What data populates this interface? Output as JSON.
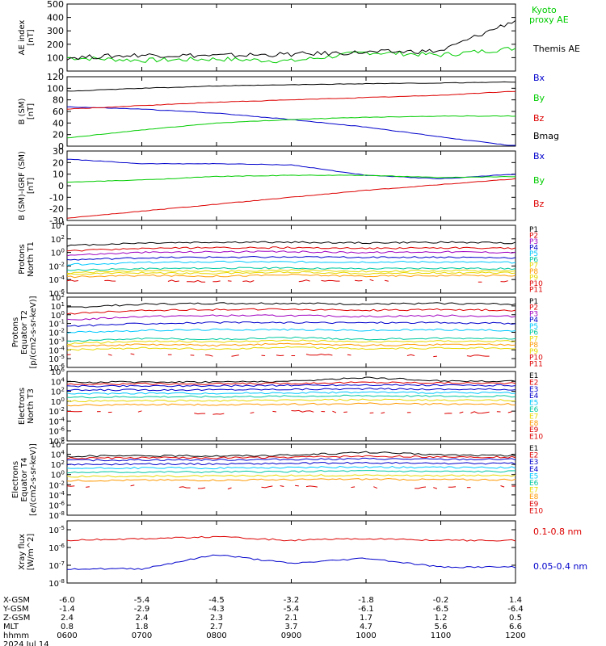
{
  "colors": {
    "black": "#000000",
    "green": "#00cc00",
    "red": "#dd0000",
    "blue": "#0000cc",
    "purple": "#a000c0",
    "cyan": "#00c8ff",
    "teal": "#00c8a0",
    "yellow": "#e8d800",
    "orange": "#ff9900"
  },
  "xaxis": {
    "rows": [
      {
        "label": "X-GSM",
        "values": [
          "-6.0",
          "-5.4",
          "-4.5",
          "-3.2",
          "-1.8",
          "-0.2",
          "1.4"
        ]
      },
      {
        "label": "Y-GSM",
        "values": [
          "-1.4",
          "-2.9",
          "-4.3",
          "-5.4",
          "-6.1",
          "-6.5",
          "-6.4"
        ]
      },
      {
        "label": "Z-GSM",
        "values": [
          "2.4",
          "2.4",
          "2.3",
          "2.1",
          "1.7",
          "1.2",
          "0.5"
        ]
      },
      {
        "label": "MLT",
        "values": [
          "0.8",
          "1.8",
          "2.7",
          "3.7",
          "4.7",
          "5.6",
          "6.6"
        ]
      },
      {
        "label": "hhmm",
        "values": [
          "0600",
          "0700",
          "0800",
          "0900",
          "1000",
          "1100",
          "1200"
        ]
      }
    ],
    "date": "2024 Jul 14"
  },
  "chart_data": [
    {
      "type": "line",
      "ylabel": "AE index [nT]",
      "ylim": [
        0,
        500
      ],
      "yticks": [
        "0",
        "100",
        "200",
        "300",
        "400",
        "500"
      ],
      "x": [
        "0600",
        "0700",
        "0800",
        "0900",
        "1000",
        "1100",
        "1200"
      ],
      "series": [
        {
          "name": "Kyoto proxy AE",
          "color": "green",
          "values": [
            100,
            80,
            90,
            75,
            140,
            120,
            170
          ]
        },
        {
          "name": "Themis AE",
          "color": "black",
          "values": [
            100,
            120,
            115,
            125,
            140,
            150,
            380
          ]
        }
      ]
    },
    {
      "type": "line",
      "ylabel": "B (SM) [nT]",
      "ylim": [
        0,
        120
      ],
      "yticks": [
        "0",
        "20",
        "40",
        "60",
        "80",
        "100",
        "120"
      ],
      "x": [
        "0600",
        "0700",
        "0800",
        "0900",
        "1000",
        "1100",
        "1200"
      ],
      "series": [
        {
          "name": "Bx",
          "color": "blue",
          "values": [
            68,
            64,
            57,
            46,
            33,
            16,
            0
          ]
        },
        {
          "name": "By",
          "color": "green",
          "values": [
            14,
            28,
            40,
            46,
            50,
            52,
            52
          ]
        },
        {
          "name": "Bz",
          "color": "red",
          "values": [
            64,
            70,
            76,
            80,
            84,
            88,
            95
          ]
        },
        {
          "name": "Bmag",
          "color": "black",
          "values": [
            95,
            100,
            104,
            106,
            108,
            109,
            111
          ]
        }
      ]
    },
    {
      "type": "line",
      "ylabel": "B (SM)-IGRF (SM) [nT]",
      "ylim": [
        -30,
        30
      ],
      "yticks": [
        "-30",
        "-20",
        "-10",
        "0",
        "10",
        "20",
        "30"
      ],
      "x": [
        "0600",
        "0700",
        "0800",
        "0900",
        "1000",
        "1100",
        "1200"
      ],
      "series": [
        {
          "name": "Bx",
          "color": "blue",
          "values": [
            23,
            19,
            19,
            18,
            9,
            6,
            10
          ]
        },
        {
          "name": "By",
          "color": "green",
          "values": [
            3,
            5,
            8,
            9,
            9,
            7,
            8
          ]
        },
        {
          "name": "Bz",
          "color": "red",
          "values": [
            -28,
            -22,
            -16,
            -10,
            -4,
            1,
            6
          ]
        }
      ]
    },
    {
      "type": "line",
      "ylabel": "Protons North T1",
      "scale": "log",
      "ylim_exp": [
        -6,
        4
      ],
      "ytick_exps": [
        -6,
        -4,
        -2,
        0,
        2,
        4
      ],
      "x": [
        "0600",
        "0700",
        "0800",
        "0900",
        "1000",
        "1100",
        "1200"
      ],
      "series": [
        {
          "name": "P1",
          "color": "black",
          "log10_values": [
            1.0,
            1.4,
            1.5,
            1.5,
            1.4,
            1.5,
            1.4
          ]
        },
        {
          "name": "P2",
          "color": "red",
          "log10_values": [
            0.2,
            0.6,
            0.7,
            0.7,
            0.6,
            0.7,
            0.6
          ]
        },
        {
          "name": "P3",
          "color": "purple",
          "log10_values": [
            -0.4,
            0.0,
            0.1,
            0.1,
            0.0,
            0.1,
            0.0
          ]
        },
        {
          "name": "P4",
          "color": "blue",
          "log10_values": [
            -1.1,
            -0.8,
            -0.7,
            -0.7,
            -0.7,
            -0.7,
            -0.8
          ]
        },
        {
          "name": "P5",
          "color": "cyan",
          "log10_values": [
            -1.8,
            -1.5,
            -1.4,
            -1.4,
            -1.4,
            -1.4,
            -1.5
          ]
        },
        {
          "name": "P6",
          "color": "teal",
          "log10_values": [
            -2.6,
            -2.4,
            -2.3,
            -2.3,
            -2.4,
            -2.3,
            -2.4
          ]
        },
        {
          "name": "P7",
          "color": "yellow",
          "log10_values": [
            -3.0,
            -2.7,
            -2.8,
            -2.6,
            -2.8,
            -2.7,
            -2.7
          ]
        },
        {
          "name": "P8",
          "color": "orange",
          "log10_values": [
            -3.6,
            -3.4,
            -3.5,
            -3.3,
            -3.5,
            -3.4,
            -3.4
          ]
        },
        {
          "name": "P9",
          "color": "yellow",
          "log10_values": [
            -3.2,
            -3.0,
            -3.1,
            -2.9,
            -3.1,
            -3.0,
            -3.0
          ]
        },
        {
          "name": "P10",
          "color": "red",
          "log10_values": [
            -4.2,
            -4.1,
            -4.3,
            -4.2,
            -4.1,
            -4.3,
            -4.2
          ]
        },
        {
          "name": "P11",
          "color": "red",
          "log10_values": [
            null,
            null,
            null,
            null,
            null,
            null,
            null
          ]
        }
      ]
    },
    {
      "type": "line",
      "ylabel": "Protons Equator T2 [p/(cm2-s-sr-keV)]",
      "scale": "log",
      "ylim_exp": [
        -6,
        2
      ],
      "ytick_exps": [
        -6,
        -5,
        -4,
        -3,
        -2,
        -1,
        0,
        1,
        2
      ],
      "x": [
        "0600",
        "0700",
        "0800",
        "0900",
        "1000",
        "1100",
        "1200"
      ],
      "series": [
        {
          "name": "P1",
          "color": "black",
          "log10_values": [
            0.8,
            1.2,
            1.3,
            1.3,
            1.2,
            1.3,
            1.2
          ]
        },
        {
          "name": "P2",
          "color": "red",
          "log10_values": [
            0.1,
            0.5,
            0.6,
            0.6,
            0.5,
            0.6,
            0.5
          ]
        },
        {
          "name": "P3",
          "color": "purple",
          "log10_values": [
            -0.6,
            -0.2,
            -0.1,
            -0.1,
            -0.2,
            -0.1,
            -0.2
          ]
        },
        {
          "name": "P4",
          "color": "blue",
          "log10_values": [
            -1.3,
            -1.0,
            -0.9,
            -0.9,
            -0.9,
            -0.9,
            -1.0
          ]
        },
        {
          "name": "P5",
          "color": "cyan",
          "log10_values": [
            -2.0,
            -1.8,
            -1.7,
            -1.7,
            -1.8,
            -1.7,
            -1.8
          ]
        },
        {
          "name": "P6",
          "color": "teal",
          "log10_values": [
            -3.0,
            -2.7,
            -2.8,
            -2.6,
            -2.8,
            -2.7,
            -2.7
          ]
        },
        {
          "name": "P7",
          "color": "yellow",
          "log10_values": [
            -3.3,
            -3.0,
            -3.1,
            -2.9,
            -3.1,
            -3.0,
            -3.0
          ]
        },
        {
          "name": "P8",
          "color": "orange",
          "log10_values": [
            -3.6,
            -3.4,
            -3.5,
            -3.3,
            -3.5,
            -3.4,
            -3.4
          ]
        },
        {
          "name": "P9",
          "color": "yellow",
          "log10_values": [
            -4.0,
            -3.8,
            -3.9,
            -3.7,
            -3.9,
            -3.8,
            -3.8
          ]
        },
        {
          "name": "P10",
          "color": "red",
          "log10_values": [
            -4.6,
            -4.5,
            -4.7,
            -4.6,
            -4.5,
            -4.7,
            -4.6
          ]
        },
        {
          "name": "P11",
          "color": "red",
          "log10_values": [
            null,
            null,
            null,
            null,
            null,
            null,
            null
          ]
        }
      ]
    },
    {
      "type": "line",
      "ylabel": "Electrons North T3",
      "scale": "log",
      "ylim_exp": [
        -8,
        6
      ],
      "ytick_exps": [
        -8,
        -6,
        -4,
        -2,
        0,
        2,
        4,
        6
      ],
      "x": [
        "0600",
        "0700",
        "0800",
        "0900",
        "1000",
        "1100",
        "1200"
      ],
      "series": [
        {
          "name": "E1",
          "color": "black",
          "log10_values": [
            3.8,
            3.9,
            3.9,
            4.0,
            4.8,
            4.1,
            4.0
          ]
        },
        {
          "name": "E2",
          "color": "red",
          "log10_values": [
            3.4,
            3.5,
            3.5,
            3.6,
            3.8,
            3.7,
            3.6
          ]
        },
        {
          "name": "E3",
          "color": "blue",
          "log10_values": [
            3.0,
            3.1,
            3.1,
            3.2,
            3.3,
            3.2,
            3.2
          ]
        },
        {
          "name": "E4",
          "color": "blue",
          "log10_values": [
            2.2,
            2.3,
            2.3,
            2.4,
            2.5,
            2.4,
            2.4
          ]
        },
        {
          "name": "E5",
          "color": "cyan",
          "log10_values": [
            1.5,
            1.6,
            1.6,
            1.7,
            1.8,
            1.7,
            1.7
          ]
        },
        {
          "name": "E6",
          "color": "teal",
          "log10_values": [
            0.8,
            0.9,
            0.9,
            1.0,
            1.1,
            1.0,
            1.0
          ]
        },
        {
          "name": "E7",
          "color": "yellow",
          "log10_values": [
            0.0,
            0.1,
            0.1,
            0.2,
            0.3,
            0.2,
            0.2
          ]
        },
        {
          "name": "E8",
          "color": "orange",
          "log10_values": [
            -0.8,
            -0.7,
            -0.7,
            -0.6,
            -0.5,
            -0.6,
            -0.6
          ]
        },
        {
          "name": "E9",
          "color": "red",
          "log10_values": [
            -2.2,
            -2.0,
            -2.6,
            -2.0,
            -2.3,
            -2.4,
            -2.1
          ]
        },
        {
          "name": "E10",
          "color": "red",
          "log10_values": [
            null,
            null,
            null,
            null,
            null,
            null,
            null
          ]
        }
      ]
    },
    {
      "type": "line",
      "ylabel": "Electrons Equator T4 [e/(cm2-s-sr-keV)]",
      "scale": "log",
      "ylim_exp": [
        -8,
        6
      ],
      "ytick_exps": [
        -8,
        -6,
        -4,
        -2,
        0,
        2,
        4,
        6
      ],
      "x": [
        "0600",
        "0700",
        "0800",
        "0900",
        "1000",
        "1100",
        "1200"
      ],
      "series": [
        {
          "name": "E1",
          "color": "black",
          "log10_values": [
            3.6,
            3.7,
            3.7,
            3.8,
            4.4,
            3.9,
            3.7
          ]
        },
        {
          "name": "E2",
          "color": "red",
          "log10_values": [
            3.2,
            3.3,
            3.3,
            3.4,
            3.6,
            3.5,
            3.4
          ]
        },
        {
          "name": "E3",
          "color": "blue",
          "log10_values": [
            2.8,
            2.9,
            2.9,
            3.0,
            3.1,
            3.0,
            3.0
          ]
        },
        {
          "name": "E4",
          "color": "blue",
          "log10_values": [
            2.0,
            2.1,
            2.1,
            2.2,
            2.3,
            2.2,
            2.2
          ]
        },
        {
          "name": "E5",
          "color": "cyan",
          "log10_values": [
            1.2,
            1.3,
            1.3,
            1.4,
            1.5,
            1.4,
            1.4
          ]
        },
        {
          "name": "E6",
          "color": "teal",
          "log10_values": [
            0.4,
            0.5,
            0.5,
            0.6,
            0.7,
            0.6,
            0.6
          ]
        },
        {
          "name": "E7",
          "color": "yellow",
          "log10_values": [
            -0.4,
            -0.3,
            -0.3,
            -0.2,
            -0.1,
            -0.2,
            -0.2
          ]
        },
        {
          "name": "E8",
          "color": "orange",
          "log10_values": [
            -1.2,
            -1.1,
            -1.1,
            -1.0,
            -0.9,
            -1.0,
            -1.0
          ]
        },
        {
          "name": "E9",
          "color": "red",
          "log10_values": [
            -2.4,
            -2.2,
            -2.8,
            -2.2,
            -2.5,
            -2.6,
            -2.3
          ]
        },
        {
          "name": "E10",
          "color": "red",
          "log10_values": [
            null,
            null,
            null,
            null,
            null,
            null,
            null
          ]
        }
      ]
    },
    {
      "type": "line",
      "ylabel": "Xray flux [W/m^2]",
      "scale": "log",
      "ylim_exp": [
        -8,
        -4.5
      ],
      "ytick_exps": [
        -8,
        -7,
        -6,
        -5
      ],
      "x": [
        "0600",
        "0700",
        "0800",
        "0900",
        "1000",
        "1100",
        "1200"
      ],
      "series": [
        {
          "name": "0.1-0.8 nm",
          "color": "red",
          "log10_values": [
            -5.6,
            -5.5,
            -5.4,
            -5.6,
            -5.5,
            -5.6,
            -5.6
          ]
        },
        {
          "name": "0.05-0.4 nm",
          "color": "blue",
          "log10_values": [
            -7.2,
            -7.2,
            -6.4,
            -6.9,
            -6.6,
            -7.1,
            -7.1
          ]
        }
      ]
    }
  ]
}
